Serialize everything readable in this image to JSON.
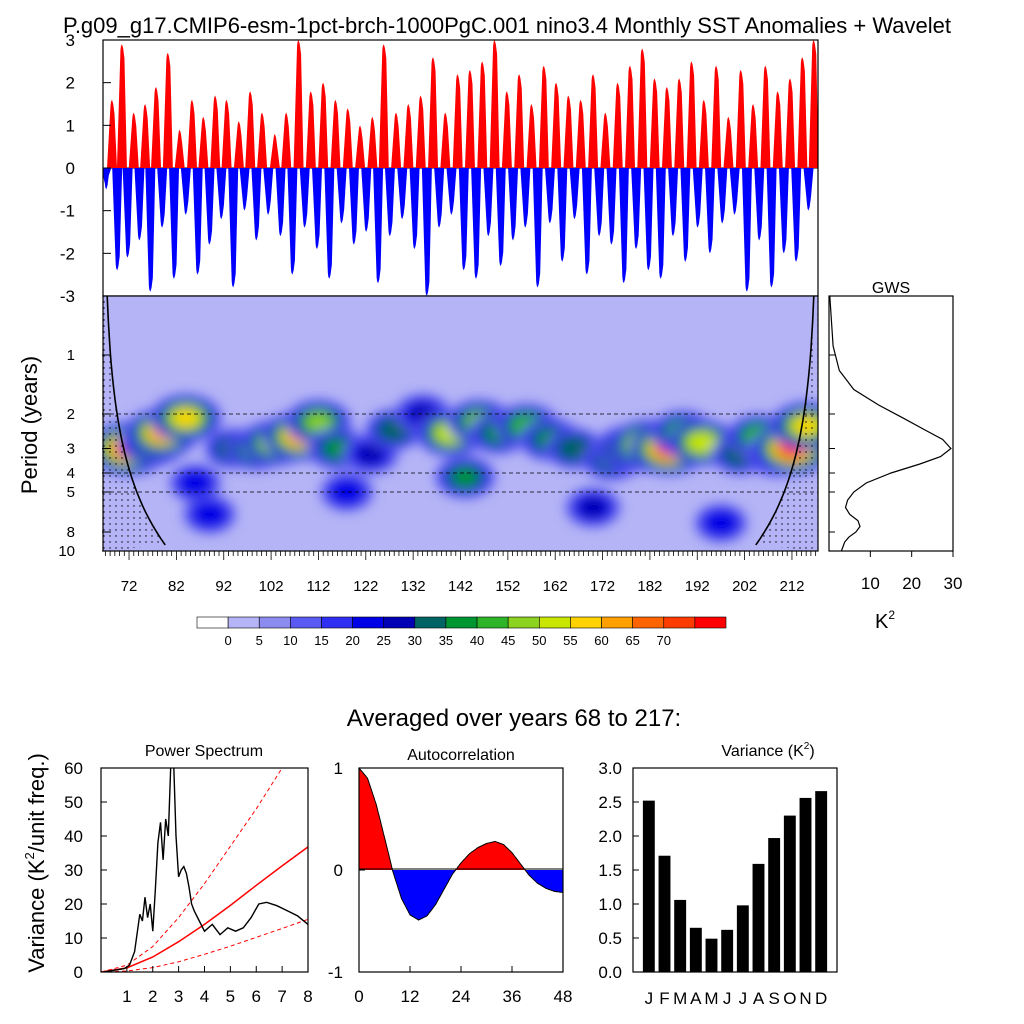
{
  "title": "P.g09_g17.CMIP6-esm-1pct-brch-1000PgC.001 nino3.4 Monthly SST Anomalies + Wavelet",
  "colors": {
    "pos": "#ff0000",
    "neg": "#0000ff",
    "coi_line": "#000000"
  },
  "chart_data": [
    {
      "id": "timeseries",
      "type": "bar",
      "xlim": [
        66.5,
        217.5
      ],
      "ylim": [
        -3,
        3
      ],
      "yticks": [
        "3",
        "2",
        "1",
        "0",
        "-1",
        "-2",
        "-3"
      ],
      "yticks_values": [
        3,
        2,
        1,
        0,
        -1,
        -2,
        -3
      ],
      "events": [
        {
          "x": 67.2,
          "v": -0.5
        },
        {
          "x": 68.4,
          "v": 1.6
        },
        {
          "x": 69.5,
          "v": -2.4
        },
        {
          "x": 70.5,
          "v": 2.9
        },
        {
          "x": 71.7,
          "v": -2.1
        },
        {
          "x": 73.0,
          "v": 1.3
        },
        {
          "x": 74.2,
          "v": -1.7
        },
        {
          "x": 75.4,
          "v": 1.5
        },
        {
          "x": 76.5,
          "v": -2.9
        },
        {
          "x": 77.7,
          "v": 1.9
        },
        {
          "x": 79.0,
          "v": -1.4
        },
        {
          "x": 80.2,
          "v": 2.7
        },
        {
          "x": 81.5,
          "v": -2.6
        },
        {
          "x": 82.7,
          "v": 0.9
        },
        {
          "x": 84.0,
          "v": -1.1
        },
        {
          "x": 85.3,
          "v": 1.6
        },
        {
          "x": 86.5,
          "v": -2.5
        },
        {
          "x": 87.7,
          "v": 1.2
        },
        {
          "x": 89.0,
          "v": -1.8
        },
        {
          "x": 90.2,
          "v": 1.7
        },
        {
          "x": 91.5,
          "v": -1.2
        },
        {
          "x": 92.6,
          "v": 1.6
        },
        {
          "x": 94.0,
          "v": -2.8
        },
        {
          "x": 95.2,
          "v": 1.1
        },
        {
          "x": 96.4,
          "v": -1.0
        },
        {
          "x": 97.6,
          "v": 1.8
        },
        {
          "x": 98.9,
          "v": -1.7
        },
        {
          "x": 100.1,
          "v": 1.3
        },
        {
          "x": 101.4,
          "v": -1.1
        },
        {
          "x": 102.8,
          "v": 0.8
        },
        {
          "x": 104.0,
          "v": -1.6
        },
        {
          "x": 105.2,
          "v": 1.3
        },
        {
          "x": 106.5,
          "v": -2.5
        },
        {
          "x": 107.8,
          "v": 3.0
        },
        {
          "x": 109.1,
          "v": -1.4
        },
        {
          "x": 110.4,
          "v": 1.8
        },
        {
          "x": 111.7,
          "v": -1.9
        },
        {
          "x": 113.0,
          "v": 2.0
        },
        {
          "x": 114.3,
          "v": -2.6
        },
        {
          "x": 115.6,
          "v": 1.6
        },
        {
          "x": 116.9,
          "v": -1.3
        },
        {
          "x": 118.2,
          "v": 1.4
        },
        {
          "x": 119.5,
          "v": -1.8
        },
        {
          "x": 120.8,
          "v": 1.0
        },
        {
          "x": 122.1,
          "v": -1.5
        },
        {
          "x": 123.4,
          "v": 1.2
        },
        {
          "x": 124.6,
          "v": -2.7
        },
        {
          "x": 125.8,
          "v": 2.9
        },
        {
          "x": 127.1,
          "v": -1.6
        },
        {
          "x": 128.4,
          "v": 1.3
        },
        {
          "x": 129.7,
          "v": -1.2
        },
        {
          "x": 131.0,
          "v": 1.5
        },
        {
          "x": 132.3,
          "v": -1.9
        },
        {
          "x": 133.6,
          "v": 1.7
        },
        {
          "x": 134.9,
          "v": -3.0
        },
        {
          "x": 136.2,
          "v": 2.6
        },
        {
          "x": 137.5,
          "v": -1.4
        },
        {
          "x": 138.8,
          "v": 1.3
        },
        {
          "x": 140.1,
          "v": -1.1
        },
        {
          "x": 141.4,
          "v": 2.2
        },
        {
          "x": 142.7,
          "v": -2.4
        },
        {
          "x": 144.0,
          "v": 2.3
        },
        {
          "x": 145.3,
          "v": -2.6
        },
        {
          "x": 146.6,
          "v": 2.5
        },
        {
          "x": 147.9,
          "v": -1.6
        },
        {
          "x": 149.2,
          "v": 3.0
        },
        {
          "x": 150.5,
          "v": -2.3
        },
        {
          "x": 151.8,
          "v": 1.8
        },
        {
          "x": 153.1,
          "v": -1.7
        },
        {
          "x": 154.4,
          "v": 2.2
        },
        {
          "x": 155.7,
          "v": -1.4
        },
        {
          "x": 157.0,
          "v": 1.5
        },
        {
          "x": 158.3,
          "v": -2.8
        },
        {
          "x": 159.6,
          "v": 2.4
        },
        {
          "x": 160.9,
          "v": -1.3
        },
        {
          "x": 162.2,
          "v": 2.0
        },
        {
          "x": 163.5,
          "v": -2.2
        },
        {
          "x": 164.8,
          "v": 1.7
        },
        {
          "x": 166.1,
          "v": -1.2
        },
        {
          "x": 167.4,
          "v": 1.6
        },
        {
          "x": 168.7,
          "v": -2.5
        },
        {
          "x": 170.0,
          "v": 2.2
        },
        {
          "x": 171.3,
          "v": -1.6
        },
        {
          "x": 172.6,
          "v": 1.3
        },
        {
          "x": 173.9,
          "v": -1.8
        },
        {
          "x": 175.2,
          "v": 2.0
        },
        {
          "x": 176.5,
          "v": -2.7
        },
        {
          "x": 177.8,
          "v": 2.4
        },
        {
          "x": 179.1,
          "v": -1.9
        },
        {
          "x": 180.4,
          "v": 2.8
        },
        {
          "x": 181.7,
          "v": -2.4
        },
        {
          "x": 183.0,
          "v": 2.1
        },
        {
          "x": 184.3,
          "v": -2.6
        },
        {
          "x": 185.6,
          "v": 1.9
        },
        {
          "x": 186.9,
          "v": -1.6
        },
        {
          "x": 188.2,
          "v": 2.1
        },
        {
          "x": 189.5,
          "v": -2.2
        },
        {
          "x": 190.8,
          "v": 2.5
        },
        {
          "x": 192.1,
          "v": -1.4
        },
        {
          "x": 193.4,
          "v": 1.6
        },
        {
          "x": 194.7,
          "v": -2.0
        },
        {
          "x": 196.0,
          "v": 2.4
        },
        {
          "x": 197.3,
          "v": -1.3
        },
        {
          "x": 198.6,
          "v": 1.2
        },
        {
          "x": 199.9,
          "v": -1.1
        },
        {
          "x": 201.2,
          "v": 2.3
        },
        {
          "x": 202.5,
          "v": -2.9
        },
        {
          "x": 203.8,
          "v": 1.5
        },
        {
          "x": 205.1,
          "v": -1.7
        },
        {
          "x": 206.4,
          "v": 2.4
        },
        {
          "x": 207.7,
          "v": -2.8
        },
        {
          "x": 209.0,
          "v": 1.8
        },
        {
          "x": 210.3,
          "v": -2.0
        },
        {
          "x": 211.6,
          "v": 2.1
        },
        {
          "x": 212.9,
          "v": -2.2
        },
        {
          "x": 214.2,
          "v": 2.6
        },
        {
          "x": 215.5,
          "v": -1.0
        },
        {
          "x": 216.6,
          "v": 3.0
        }
      ]
    },
    {
      "id": "wavelet",
      "type": "heatmap",
      "ylabel": "Period (years)",
      "xlim": [
        66.5,
        217.5
      ],
      "xticks": [
        "72",
        "82",
        "92",
        "102",
        "112",
        "122",
        "132",
        "142",
        "152",
        "162",
        "172",
        "182",
        "192",
        "202",
        "212"
      ],
      "xticks_values": [
        72,
        82,
        92,
        102,
        112,
        122,
        132,
        142,
        152,
        162,
        172,
        182,
        192,
        202,
        212
      ],
      "period_range": [
        0.5,
        10
      ],
      "yticks": [
        "1",
        "2",
        "3",
        "4",
        "5",
        "8",
        "10"
      ],
      "yticks_values": [
        1,
        2,
        3,
        4,
        5,
        8,
        10
      ],
      "dashed_periods": [
        2,
        4,
        5
      ],
      "peak_period": 3,
      "hotspots": [
        {
          "x": 72,
          "p": 3.0,
          "v": 75
        },
        {
          "x": 77,
          "p": 2.8,
          "v": 50
        },
        {
          "x": 79,
          "p": 2.5,
          "v": 60
        },
        {
          "x": 84,
          "p": 2.1,
          "v": 55
        },
        {
          "x": 86,
          "p": 4.5,
          "v": 20
        },
        {
          "x": 89,
          "p": 6.5,
          "v": 22
        },
        {
          "x": 94,
          "p": 3.0,
          "v": 30
        },
        {
          "x": 99,
          "p": 3.0,
          "v": 40
        },
        {
          "x": 103,
          "p": 2.8,
          "v": 50
        },
        {
          "x": 108,
          "p": 2.6,
          "v": 62
        },
        {
          "x": 112,
          "p": 2.2,
          "v": 45
        },
        {
          "x": 116,
          "p": 3.0,
          "v": 35
        },
        {
          "x": 118,
          "p": 5.0,
          "v": 22
        },
        {
          "x": 123,
          "p": 3.2,
          "v": 28
        },
        {
          "x": 128,
          "p": 2.4,
          "v": 30
        },
        {
          "x": 134,
          "p": 2.0,
          "v": 28
        },
        {
          "x": 140,
          "p": 2.5,
          "v": 52
        },
        {
          "x": 143,
          "p": 4.2,
          "v": 35
        },
        {
          "x": 146,
          "p": 2.2,
          "v": 45
        },
        {
          "x": 150,
          "p": 2.5,
          "v": 35
        },
        {
          "x": 156,
          "p": 2.3,
          "v": 42
        },
        {
          "x": 161,
          "p": 2.7,
          "v": 38
        },
        {
          "x": 166,
          "p": 3.0,
          "v": 30
        },
        {
          "x": 170,
          "p": 6.0,
          "v": 26
        },
        {
          "x": 174,
          "p": 3.4,
          "v": 35
        },
        {
          "x": 178,
          "p": 3.0,
          "v": 55
        },
        {
          "x": 182,
          "p": 2.9,
          "v": 72
        },
        {
          "x": 186,
          "p": 3.0,
          "v": 70
        },
        {
          "x": 189,
          "p": 2.5,
          "v": 42
        },
        {
          "x": 193,
          "p": 2.8,
          "v": 50
        },
        {
          "x": 197,
          "p": 7.2,
          "v": 22
        },
        {
          "x": 201,
          "p": 3.2,
          "v": 30
        },
        {
          "x": 205,
          "p": 2.6,
          "v": 40
        },
        {
          "x": 209,
          "p": 3.2,
          "v": 45
        },
        {
          "x": 212,
          "p": 3.0,
          "v": 70
        },
        {
          "x": 215,
          "p": 2.3,
          "v": 55
        }
      ]
    },
    {
      "id": "gws",
      "type": "line",
      "title": "GWS",
      "xlabel": "K",
      "xlabel_sup": "2",
      "xlim": [
        0,
        30
      ],
      "xticks": [
        "10",
        "20",
        "30"
      ],
      "xticks_values": [
        10,
        20,
        30
      ],
      "period": [
        0.5,
        0.9,
        1.2,
        1.5,
        1.8,
        2.1,
        2.4,
        2.7,
        3.0,
        3.3,
        3.6,
        4.0,
        4.5,
        5.0,
        5.5,
        6.0,
        6.5,
        7.0,
        7.5,
        8.0,
        8.5,
        9.0,
        10.0
      ],
      "k2": [
        0.2,
        1.0,
        2.5,
        6.0,
        12.0,
        18.0,
        23.0,
        27.5,
        29.5,
        27.0,
        22.0,
        15.0,
        9.0,
        6.0,
        4.5,
        4.0,
        5.0,
        7.0,
        7.5,
        6.5,
        4.8,
        3.8,
        3.0
      ]
    },
    {
      "id": "colorbar",
      "type": "table",
      "labels": [
        "0",
        "5",
        "10",
        "15",
        "20",
        "25",
        "30",
        "35",
        "40",
        "45",
        "50",
        "55",
        "60",
        "65",
        "70"
      ],
      "colors": [
        "#ffffff",
        "#b4b4f6",
        "#8c8cf0",
        "#5a5af2",
        "#2f2ff3",
        "#0000e6",
        "#0000b4",
        "#006464",
        "#009632",
        "#2db428",
        "#8cd220",
        "#c8e600",
        "#ffd200",
        "#ffa000",
        "#ff6400",
        "#ff3c00",
        "#ff0000"
      ]
    },
    {
      "id": "power_spectrum",
      "type": "line",
      "title": "Power Spectrum",
      "ylabel": "Variance (K",
      "ylabel_sup": "2",
      "ylabel_tail": "/unit freq.)",
      "xlim": [
        0,
        8
      ],
      "ylim": [
        0,
        60
      ],
      "xticks": [
        "1",
        "2",
        "3",
        "4",
        "5",
        "6",
        "7",
        "8"
      ],
      "xticks_values": [
        1,
        2,
        3,
        4,
        5,
        6,
        7,
        8
      ],
      "yticks": [
        "0",
        "10",
        "20",
        "30",
        "40",
        "50",
        "60"
      ],
      "yticks_values": [
        0,
        10,
        20,
        30,
        40,
        50,
        60
      ],
      "spectrum": {
        "x": [
          0.1,
          0.5,
          0.9,
          1.1,
          1.3,
          1.5,
          1.6,
          1.7,
          1.8,
          1.9,
          2.0,
          2.1,
          2.2,
          2.3,
          2.4,
          2.5,
          2.6,
          2.7,
          2.8,
          2.9,
          3.0,
          3.1,
          3.2,
          3.3,
          3.4,
          3.5,
          3.6,
          3.8,
          4.0,
          4.3,
          4.6,
          4.9,
          5.2,
          5.5,
          5.8,
          6.1,
          6.4,
          6.8,
          7.2,
          7.6,
          8.0
        ],
        "y": [
          0.0,
          0.5,
          1.0,
          2.0,
          6.0,
          17.0,
          15.0,
          22.0,
          16.0,
          20.0,
          12.0,
          24.0,
          38.0,
          44.0,
          33.0,
          45.0,
          40.0,
          62.0,
          64.0,
          40.0,
          28.0,
          30.0,
          31.0,
          29.0,
          25.0,
          20.0,
          18.0,
          15.0,
          12.0,
          14.0,
          11.0,
          13.0,
          12.0,
          13.0,
          16.0,
          20.0,
          20.5,
          19.5,
          18.0,
          16.5,
          14.0
        ]
      },
      "red_noise": {
        "x": [
          0,
          1,
          2,
          3,
          4,
          5,
          6,
          7,
          8
        ],
        "y": [
          0.0,
          1.2,
          4.4,
          8.9,
          14.0,
          19.6,
          25.5,
          31.2,
          36.8
        ]
      },
      "confidence_upper": {
        "x": [
          0,
          1,
          2,
          3,
          4,
          5,
          6,
          7,
          8
        ],
        "y": [
          0.0,
          2.0,
          7.5,
          16.0,
          26.0,
          37.0,
          48.0,
          60.0,
          72.0
        ]
      },
      "confidence_lower": {
        "x": [
          0,
          1,
          2,
          3,
          4,
          5,
          6,
          7,
          8
        ],
        "y": [
          0.0,
          0.3,
          1.3,
          3.0,
          5.2,
          7.6,
          10.2,
          12.8,
          15.5
        ]
      }
    },
    {
      "id": "autocorrelation",
      "type": "area",
      "title": "Autocorrelation",
      "xlim": [
        0,
        48
      ],
      "ylim": [
        -1,
        1
      ],
      "xticks": [
        "0",
        "12",
        "24",
        "36",
        "48"
      ],
      "xticks_values": [
        0,
        12,
        24,
        36,
        48
      ],
      "yticks": [
        "1",
        "0",
        "-1"
      ],
      "yticks_values": [
        1,
        0,
        -1
      ],
      "x": [
        0,
        2,
        4,
        6,
        8,
        10,
        12,
        14,
        16,
        18,
        20,
        22,
        24,
        26,
        28,
        30,
        32,
        34,
        36,
        38,
        40,
        42,
        44,
        46,
        48
      ],
      "y": [
        1.0,
        0.9,
        0.65,
        0.32,
        -0.02,
        -0.28,
        -0.44,
        -0.49,
        -0.45,
        -0.34,
        -0.19,
        -0.04,
        0.07,
        0.16,
        0.22,
        0.26,
        0.28,
        0.25,
        0.17,
        0.06,
        -0.05,
        -0.13,
        -0.18,
        -0.21,
        -0.22
      ]
    },
    {
      "id": "variance",
      "type": "bar",
      "title": "Variance (K",
      "title_sup": "2",
      "title_tail": ")",
      "categories": [
        "J",
        "F",
        "M",
        "A",
        "M",
        "J",
        "J",
        "A",
        "S",
        "O",
        "N",
        "D"
      ],
      "values": [
        2.52,
        1.71,
        1.06,
        0.65,
        0.49,
        0.62,
        0.98,
        1.59,
        1.97,
        2.3,
        2.56,
        2.66
      ],
      "ylim": [
        0,
        3.0
      ],
      "yticks": [
        "0.0",
        "0.5",
        "1.0",
        "1.5",
        "2.0",
        "2.5",
        "3.0"
      ],
      "yticks_values": [
        0.0,
        0.5,
        1.0,
        1.5,
        2.0,
        2.5,
        3.0
      ]
    }
  ],
  "subtitle": "Averaged over years 68 to 217:"
}
